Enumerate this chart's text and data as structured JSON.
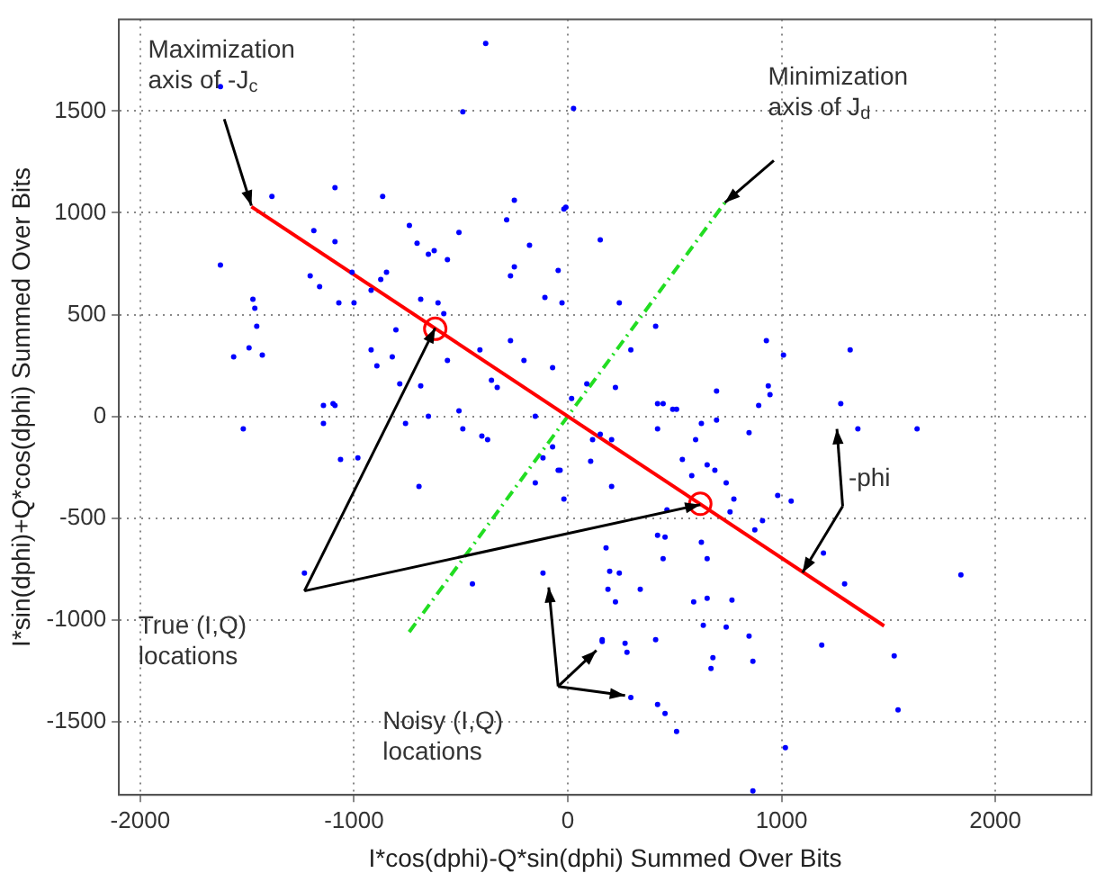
{
  "chart_data": {
    "type": "scatter",
    "xlabel": "I*cos(dphi)-Q*sin(dphi) Summed Over Bits",
    "ylabel": "I*sin(dphi)+Q*cos(dphi) Summed Over Bits",
    "xlim": [
      -2100,
      2450
    ],
    "ylim": [
      -1860,
      1950
    ],
    "xticks": [
      -2000,
      -1000,
      0,
      1000,
      2000
    ],
    "yticks": [
      -1500,
      -1000,
      -500,
      0,
      500,
      1000,
      1500
    ],
    "grid": true,
    "legend": false,
    "series": [
      {
        "color": "#0000ff",
        "marker": "circle",
        "x": [
          -384,
          -491,
          27,
          -1625,
          -1384,
          -1089,
          -866,
          -250,
          -286,
          -18,
          152,
          -1625,
          -1188,
          -1089,
          -741,
          -705,
          -652,
          -625,
          -509,
          -563,
          -179,
          -250,
          -268,
          -1205,
          -1161,
          -1009,
          -848,
          -875,
          -920,
          -1000,
          -1071,
          -688,
          -607,
          -580,
          -107,
          -27,
          -1473,
          -1464,
          -1455,
          -1491,
          -1429,
          -1563,
          -804,
          -920,
          -893,
          -821,
          -786,
          -688,
          -563,
          -411,
          -357,
          -268,
          -205,
          -330,
          -71,
          -1143,
          -1089,
          -9,
          -45,
          241,
          411,
          295,
          223,
          89,
          18,
          420,
          491,
          696,
          929,
          938,
          946,
          1009,
          1321,
          1277,
          -1098,
          -1518,
          -1143,
          -1063,
          -982,
          -759,
          -652,
          -509,
          -491,
          -402,
          -375,
          -152,
          -116,
          -71,
          -36,
          -152,
          -18,
          -696,
          -1232,
          -446,
          -116,
          161,
          152,
          446,
          509,
          893,
          625,
          696,
          420,
          116,
          205,
          598,
          848,
          1357,
          1634,
          536,
          652,
          688,
          741,
          580,
          107,
          -45,
          205,
          464,
          777,
          759,
          982,
          1045,
          911,
          875,
          420,
          455,
          625,
          179,
          446,
          652,
          1196,
          1839,
          196,
          241,
          1295,
          188,
          339,
          223,
          652,
          589,
          768,
          634,
          741,
          848,
          161,
          268,
          277,
          411,
          679,
          866,
          670,
          1188,
          1527,
          295,
          420,
          455,
          509,
          1545,
          1018,
          866
        ],
        "values": [
          1832,
          1496,
          1513,
          1620,
          1080,
          1124,
          1080,
          1062,
          965,
          1018,
          867,
          743,
          912,
          858,
          938,
          850,
          796,
          814,
          903,
          770,
          841,
          734,
          690,
          690,
          637,
          708,
          708,
          673,
          619,
          558,
          558,
          575,
          558,
          504,
          584,
          558,
          575,
          531,
          442,
          336,
          301,
          292,
          425,
          327,
          248,
          292,
          159,
          150,
          274,
          327,
          177,
          372,
          274,
          142,
          239,
          53,
          53,
          1027,
          717,
          558,
          442,
          327,
          142,
          159,
          88,
          62,
          35,
          124,
          372,
          150,
          106,
          301,
          327,
          62,
          62,
          -62,
          -35,
          -212,
          -204,
          -35,
          0,
          27,
          -62,
          -97,
          -115,
          0,
          -204,
          -150,
          -265,
          -327,
          -407,
          -345,
          -770,
          -823,
          -770,
          -1106,
          -88,
          62,
          35,
          53,
          -35,
          -18,
          -62,
          -115,
          -115,
          -115,
          -80,
          -62,
          -62,
          -212,
          -239,
          -265,
          -327,
          -292,
          -221,
          -265,
          -345,
          -460,
          -407,
          -469,
          -389,
          -416,
          -513,
          -558,
          -584,
          -593,
          -619,
          -646,
          -699,
          -699,
          -672,
          -779,
          -761,
          -770,
          -823,
          -850,
          -850,
          -912,
          -894,
          -912,
          -903,
          -1027,
          -1035,
          -1080,
          -1097,
          -1115,
          -1159,
          -1097,
          -1186,
          -1204,
          -1239,
          -1124,
          -1177,
          -1381,
          -1416,
          -1460,
          -1549,
          -1442,
          -1628,
          -1840
        ]
      },
      {
        "type": "line",
        "color": "#ff0000",
        "marker": "none",
        "x": [
          -1480,
          1480
        ],
        "values": [
          1030,
          -1030
        ]
      },
      {
        "type": "line",
        "color": "#22dd22",
        "marker": "none",
        "line_style": "dashed",
        "x": [
          -742,
          735
        ],
        "values": [
          -1060,
          1050
        ]
      },
      {
        "color": "#ff0000",
        "marker": "circle",
        "x": [
          -620,
          620
        ],
        "values": [
          430,
          -430
        ]
      }
    ],
    "annotations": [
      {
        "text": "Maximization axis of -J$_{c}$",
        "x": -1480,
        "y": 1035
      },
      "Minimization axis of J$_{d}$",
      "True (I,Q) locations",
      "Noisy (I,Q) locations",
      {
        "text": "-phi",
        "x": 1098,
        "y": -768
      }
    ]
  }
}
